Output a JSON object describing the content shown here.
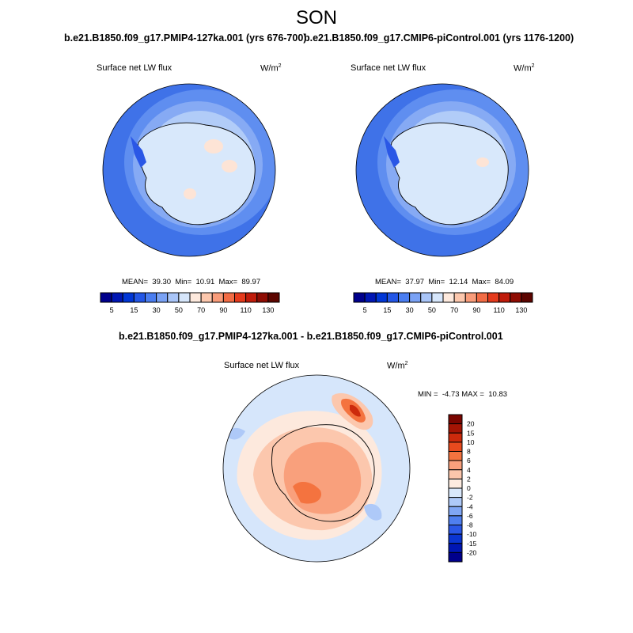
{
  "figure": {
    "season": "SON",
    "panels": [
      {
        "title": "b.e21.B1850.f09_g17.PMIP4-127ka.001 (yrs 676-700)",
        "variable": "Surface net LW flux",
        "units": "W/m",
        "units_exp": "2",
        "stats": {
          "mean_label": "MEAN=",
          "mean": "39.30",
          "min_label": "Min=",
          "min": "10.91",
          "max_label": "Max=",
          "max": "89.97"
        }
      },
      {
        "title": "b.e21.B1850.f09_g17.CMIP6-piControl.001 (yrs 1176-1200)",
        "variable": "Surface net LW flux",
        "units": "W/m",
        "units_exp": "2",
        "stats": {
          "mean_label": "MEAN=",
          "mean": "37.97",
          "min_label": "Min=",
          "min": "12.14",
          "max_label": "Max=",
          "max": "84.09"
        }
      }
    ],
    "diff_panel": {
      "title": "b.e21.B1850.f09_g17.PMIP4-127ka.001 - b.e21.B1850.f09_g17.CMIP6-piControl.001",
      "variable": "Surface net LW flux",
      "units": "W/m",
      "units_exp": "2",
      "stats": {
        "min_label": "MIN =",
        "min": "-4.73",
        "max_label": "MAX =",
        "max": "10.83"
      }
    }
  },
  "colorbar_abs": {
    "colors": [
      "#00008c",
      "#0016b4",
      "#0036d6",
      "#2356e6",
      "#4a7df0",
      "#7aa2f5",
      "#a9c5f8",
      "#d6e6fb",
      "#fde9dd",
      "#fcc7ad",
      "#f99c7a",
      "#f26c45",
      "#e53a1c",
      "#c01b0a",
      "#8f0c03",
      "#5c0500"
    ],
    "labels": [
      "5",
      "15",
      "30",
      "50",
      "70",
      "90",
      "110",
      "130"
    ]
  },
  "colorbar_diff": {
    "colors": [
      "#00008c",
      "#0016b4",
      "#0a35d2",
      "#2a57e6",
      "#4f7fef",
      "#80a6f4",
      "#aec9f8",
      "#d9e8fb",
      "#fdebe0",
      "#fcc6ab",
      "#f9a07c",
      "#f4733f",
      "#e84a1e",
      "#cc2a0c",
      "#a41404",
      "#7a0500"
    ],
    "labels": [
      "-20",
      "-15",
      "-10",
      "-8",
      "-6",
      "-4",
      "-2",
      "0",
      "2",
      "4",
      "6",
      "8",
      "10",
      "15",
      "20"
    ]
  }
}
